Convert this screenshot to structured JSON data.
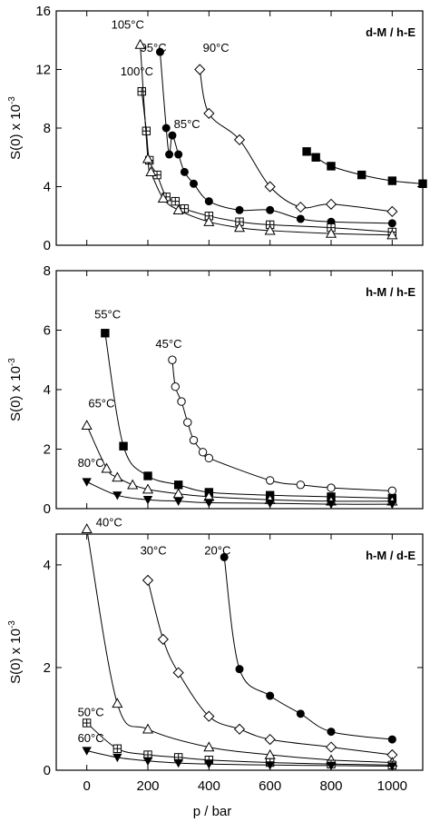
{
  "chart_data": [
    {
      "type": "scatter",
      "tag": "d-M / h-E",
      "ylabel": "S(0) x 10",
      "ylabel_exp": "-3",
      "xlabel": "",
      "xlim": [
        -100,
        1100
      ],
      "ylim": [
        0,
        16
      ],
      "xticks": [],
      "yticks": [
        0,
        4,
        8,
        12,
        16
      ],
      "series": [
        {
          "name": "85°C",
          "marker": "square-filled",
          "x": [
            720,
            750,
            800,
            900,
            1000,
            1100
          ],
          "y": [
            6.4,
            6.0,
            5.4,
            4.8,
            4.4,
            4.2
          ],
          "label_at": [
            285,
            8.0
          ]
        },
        {
          "name": "90°C",
          "marker": "diamond-open",
          "x": [
            370,
            400,
            500,
            600,
            700,
            800,
            1000
          ],
          "y": [
            12.0,
            9.0,
            7.2,
            4.0,
            2.6,
            2.8,
            2.3
          ],
          "label_at": [
            380,
            13.2
          ]
        },
        {
          "name": "95°C",
          "marker": "circle-filled",
          "x": [
            240,
            260,
            270,
            280,
            300,
            320,
            350,
            400,
            500,
            600,
            700,
            800,
            1000
          ],
          "y": [
            13.2,
            8.0,
            6.2,
            7.5,
            6.2,
            5.0,
            4.2,
            3.0,
            2.4,
            2.4,
            1.8,
            1.6,
            1.5
          ],
          "label_at": [
            175,
            13.2
          ]
        },
        {
          "name": "100°C",
          "marker": "square-cross",
          "x": [
            180,
            195,
            205,
            230,
            260,
            290,
            320,
            400,
            500,
            600,
            800,
            1000
          ],
          "y": [
            10.5,
            7.8,
            5.8,
            4.8,
            3.3,
            3.0,
            2.5,
            2.0,
            1.6,
            1.4,
            1.2,
            0.9
          ],
          "label_at": [
            110,
            11.6
          ]
        },
        {
          "name": "105°C",
          "marker": "triangle-open",
          "x": [
            175,
            200,
            210,
            250,
            300,
            400,
            500,
            600,
            800,
            1000
          ],
          "y": [
            13.7,
            5.9,
            5.0,
            3.2,
            2.4,
            1.6,
            1.2,
            1.0,
            0.8,
            0.7
          ],
          "label_at": [
            80,
            14.8
          ]
        }
      ]
    },
    {
      "type": "scatter",
      "tag": "h-M / h-E",
      "ylabel": "S(0) x 10",
      "ylabel_exp": "-3",
      "xlabel": "",
      "xlim": [
        -100,
        1100
      ],
      "ylim": [
        0,
        8
      ],
      "xticks": [],
      "yticks": [
        0,
        2,
        4,
        6,
        8
      ],
      "series": [
        {
          "name": "45°C",
          "marker": "circle-open",
          "x": [
            280,
            290,
            310,
            330,
            350,
            380,
            400,
            600,
            700,
            800,
            1000
          ],
          "y": [
            5.0,
            4.1,
            3.6,
            2.9,
            2.3,
            1.9,
            1.7,
            0.95,
            0.8,
            0.7,
            0.6
          ],
          "label_at": [
            225,
            5.4
          ]
        },
        {
          "name": "55°C",
          "marker": "square-filled",
          "x": [
            60,
            120,
            200,
            300,
            400,
            600,
            800,
            1000
          ],
          "y": [
            5.9,
            2.1,
            1.1,
            0.8,
            0.55,
            0.45,
            0.4,
            0.35
          ],
          "label_at": [
            25,
            6.4
          ]
        },
        {
          "name": "65°C",
          "marker": "triangle-open",
          "x": [
            0,
            65,
            100,
            150,
            200,
            300,
            400,
            600,
            800,
            1000
          ],
          "y": [
            2.8,
            1.35,
            1.05,
            0.8,
            0.65,
            0.5,
            0.4,
            0.3,
            0.25,
            0.25
          ],
          "label_at": [
            5,
            3.4
          ]
        },
        {
          "name": "80°C",
          "marker": "triangle-filled-down",
          "x": [
            0,
            100,
            200,
            300,
            400,
            600,
            800,
            1000
          ],
          "y": [
            0.9,
            0.45,
            0.3,
            0.25,
            0.2,
            0.18,
            0.15,
            0.15
          ],
          "label_at": [
            -30,
            1.4
          ]
        }
      ]
    },
    {
      "type": "scatter",
      "tag": "h-M / d-E",
      "ylabel": "S(0) x 10",
      "ylabel_exp": "-3",
      "xlabel": "p / bar",
      "xlim": [
        -100,
        1100
      ],
      "ylim": [
        0,
        4.6
      ],
      "xticks": [
        0,
        200,
        400,
        600,
        800,
        1000
      ],
      "yticks": [
        0,
        2,
        4
      ],
      "series": [
        {
          "name": "20°C",
          "marker": "circle-filled",
          "x": [
            450,
            500,
            600,
            700,
            800,
            1000
          ],
          "y": [
            4.15,
            1.97,
            1.45,
            1.1,
            0.75,
            0.6
          ],
          "label_at": [
            385,
            4.2
          ]
        },
        {
          "name": "30°C",
          "marker": "diamond-open",
          "x": [
            200,
            250,
            300,
            400,
            500,
            600,
            800,
            1000
          ],
          "y": [
            3.7,
            2.55,
            1.9,
            1.05,
            0.8,
            0.6,
            0.45,
            0.3
          ],
          "label_at": [
            175,
            4.2
          ]
        },
        {
          "name": "40°C",
          "marker": "triangle-open",
          "x": [
            0,
            100,
            200,
            400,
            600,
            800,
            1000
          ],
          "y": [
            4.7,
            1.3,
            0.8,
            0.45,
            0.3,
            0.2,
            0.15
          ],
          "label_at": [
            30,
            4.75
          ]
        },
        {
          "name": "50°C",
          "marker": "square-cross",
          "x": [
            0,
            100,
            200,
            300,
            400,
            600,
            800,
            1000
          ],
          "y": [
            0.92,
            0.42,
            0.3,
            0.25,
            0.2,
            0.15,
            0.12,
            0.1
          ],
          "label_at": [
            -30,
            1.05
          ]
        },
        {
          "name": "60°C",
          "marker": "triangle-filled-down",
          "x": [
            0,
            100,
            200,
            300,
            400,
            600,
            800,
            1000
          ],
          "y": [
            0.38,
            0.25,
            0.18,
            0.14,
            0.12,
            0.1,
            0.09,
            0.08
          ],
          "label_at": [
            -30,
            0.55
          ]
        }
      ]
    }
  ]
}
